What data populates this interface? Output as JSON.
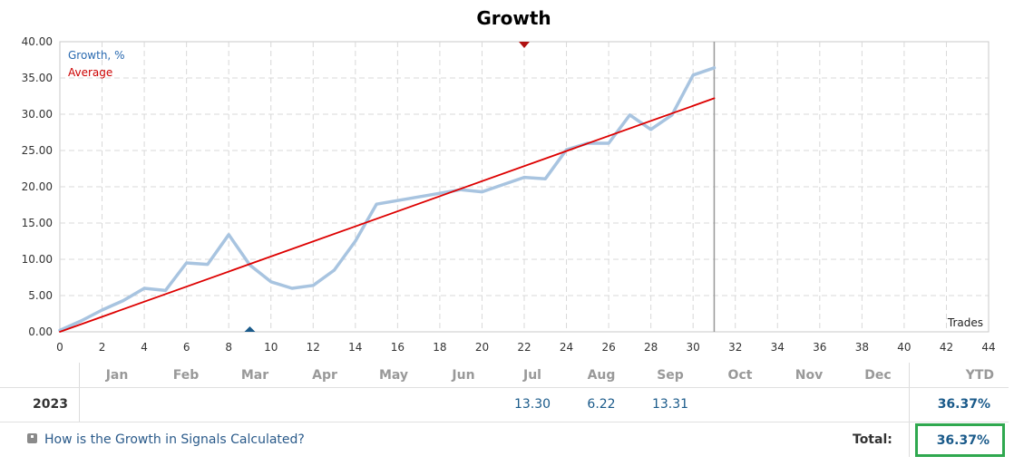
{
  "chart_data": {
    "type": "line",
    "title": "Growth",
    "xlabel": "Trades",
    "xlim": [
      0,
      44
    ],
    "ylim": [
      0,
      40
    ],
    "x_ticks": [
      0,
      2,
      4,
      6,
      8,
      10,
      12,
      14,
      16,
      18,
      20,
      22,
      24,
      26,
      28,
      30,
      32,
      34,
      36,
      38,
      40,
      42,
      44
    ],
    "y_ticks": [
      "0.00",
      "5.00",
      "10.00",
      "15.00",
      "20.00",
      "25.00",
      "30.00",
      "35.00",
      "40.00"
    ],
    "y_tick_values": [
      0,
      5,
      10,
      15,
      20,
      25,
      30,
      35,
      40
    ],
    "grid": true,
    "legend_placement": "top-left",
    "current_trade_marker": 31,
    "top_marker_x": 22,
    "bottom_marker_x": 9,
    "series": [
      {
        "name": "Growth, %",
        "color": "#a8c4e0",
        "x": [
          0,
          1,
          2,
          3,
          4,
          5,
          6,
          7,
          8,
          9,
          10,
          11,
          12,
          13,
          14,
          15,
          16,
          17,
          18,
          19,
          20,
          21,
          22,
          23,
          24,
          25,
          26,
          27,
          28,
          29,
          30,
          31
        ],
        "y": [
          0.2,
          1.5,
          3.0,
          4.3,
          6.0,
          5.7,
          9.5,
          9.3,
          13.4,
          9.2,
          6.9,
          6.0,
          6.4,
          8.5,
          12.5,
          17.6,
          18.1,
          18.6,
          19.1,
          19.6,
          19.3,
          20.3,
          21.3,
          21.1,
          25.1,
          26.0,
          26.0,
          29.9,
          27.9,
          29.9,
          35.4,
          36.4
        ]
      },
      {
        "name": "Average",
        "color": "#dd0000",
        "x": [
          0,
          31
        ],
        "y": [
          0,
          32.2
        ]
      }
    ]
  },
  "table": {
    "months": [
      "Jan",
      "Feb",
      "Mar",
      "Apr",
      "May",
      "Jun",
      "Jul",
      "Aug",
      "Sep",
      "Oct",
      "Nov",
      "Dec"
    ],
    "ytd_label": "YTD",
    "year": "2023",
    "values": [
      "",
      "",
      "",
      "",
      "",
      "",
      "13.30",
      "6.22",
      "13.31",
      "",
      "",
      ""
    ],
    "ytd": "36.37%"
  },
  "footer": {
    "help_link": "How is the Growth in Signals Calculated?",
    "total_label": "Total:",
    "total_value": "36.37%"
  },
  "colors": {
    "accent_box": "#2fa84f",
    "value_blue": "#1a5a8a"
  }
}
